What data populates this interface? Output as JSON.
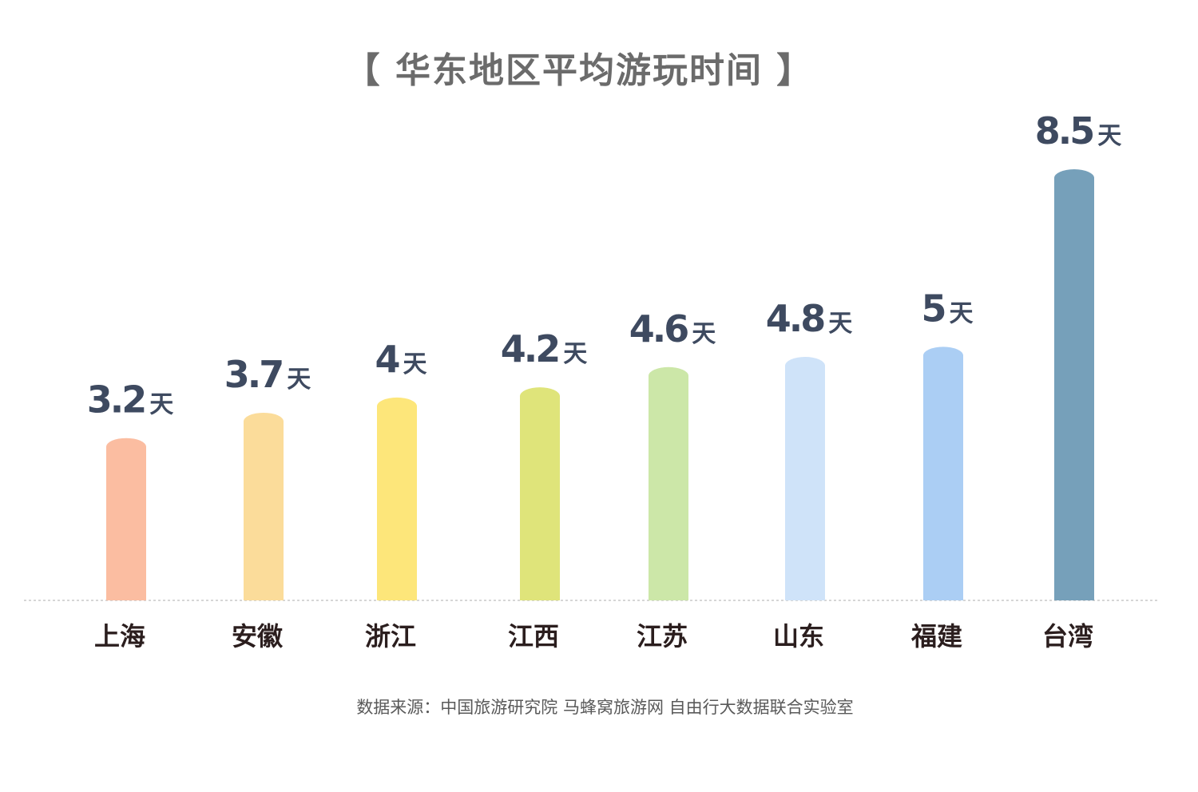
{
  "chart_data": {
    "type": "bar",
    "title": "【 华东地区平均游玩时间 】",
    "categories": [
      "上海",
      "安徽",
      "浙江",
      "江西",
      "江苏",
      "山东",
      "福建",
      "台湾"
    ],
    "values": [
      3.2,
      3.7,
      4,
      4.2,
      4.6,
      4.8,
      5,
      8.5
    ],
    "value_labels": [
      "3.2",
      "3.7",
      "4",
      "4.2",
      "4.6",
      "4.8",
      "5",
      "8.5"
    ],
    "unit": "天",
    "colors": [
      "#fbbda1",
      "#fbdc9a",
      "#fde67a",
      "#dfe47a",
      "#cce7a8",
      "#cfe3f9",
      "#abcef4",
      "#76a0ba"
    ],
    "label_color": "#3e4a60",
    "category_color": "#2b1e1e",
    "grid": false,
    "legend": "none",
    "ylim": [
      0,
      8.5
    ]
  },
  "source_note": "数据来源：中国旅游研究院 马蜂窝旅游网 自由行大数据联合实验室"
}
